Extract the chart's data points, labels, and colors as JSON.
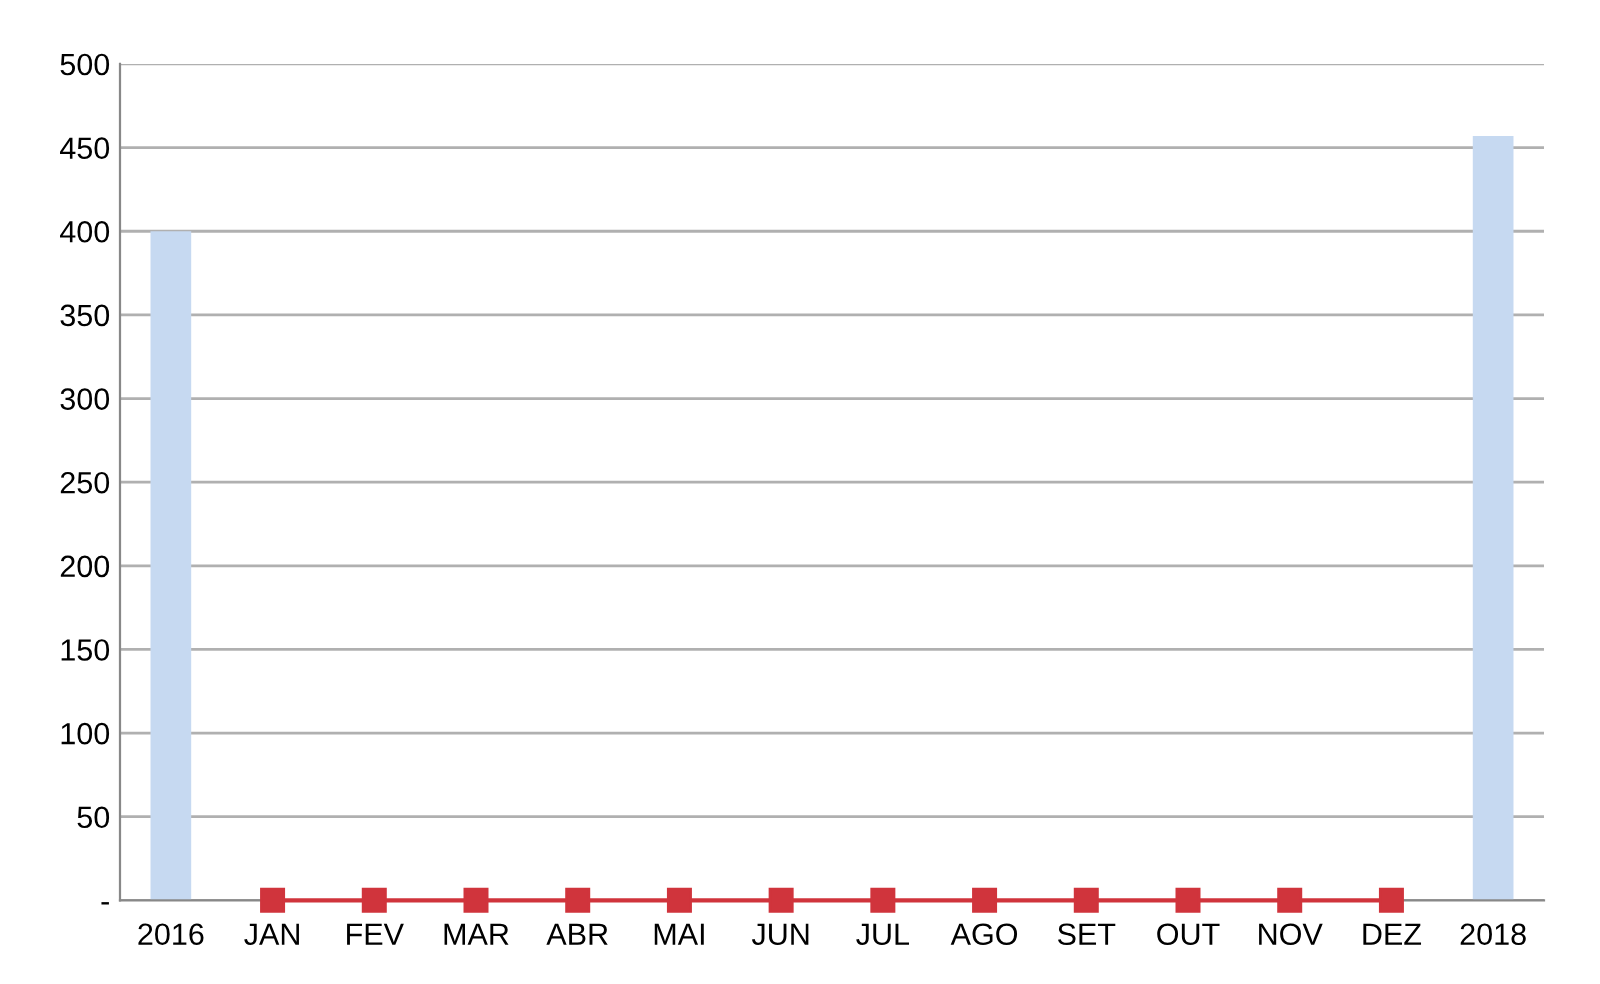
{
  "chart_data": {
    "type": "bar",
    "categories": [
      "2016",
      "JAN",
      "FEV",
      "MAR",
      "ABR",
      "MAI",
      "JUN",
      "JUL",
      "AGO",
      "SET",
      "OUT",
      "NOV",
      "DEZ",
      "2018"
    ],
    "series": [
      {
        "color": "#c6d9f1",
        "values": [
          400,
          null,
          null,
          null,
          null,
          null,
          null,
          null,
          null,
          null,
          null,
          null,
          null,
          457
        ]
      },
      {
        "type": "line",
        "color": "#d0343c",
        "marker": "square",
        "values": [
          null,
          0,
          0,
          0,
          0,
          0,
          0,
          0,
          0,
          0,
          0,
          0,
          0,
          null
        ]
      }
    ],
    "ylim": [
      0,
      500
    ],
    "yticks": [
      {
        "value": 0,
        "label": "-"
      },
      50,
      100,
      150,
      200,
      250,
      300,
      350,
      400,
      450,
      500
    ],
    "grid": "y",
    "legend": false
  }
}
